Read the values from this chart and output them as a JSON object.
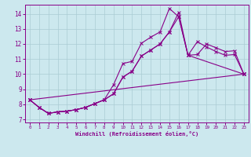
{
  "xlabel": "Windchill (Refroidissement éolien,°C)",
  "bg_color": "#cce8ee",
  "grid_color": "#aaccd4",
  "line_color": "#880088",
  "xlim": [
    -0.5,
    23.5
  ],
  "ylim": [
    6.8,
    14.6
  ],
  "xticks": [
    0,
    1,
    2,
    3,
    4,
    5,
    6,
    7,
    8,
    9,
    10,
    11,
    12,
    13,
    14,
    15,
    16,
    17,
    18,
    19,
    20,
    21,
    22,
    23
  ],
  "yticks": [
    7,
    8,
    9,
    10,
    11,
    12,
    13,
    14
  ],
  "curve1_x": [
    0,
    1,
    2,
    3,
    4,
    5,
    6,
    7,
    8,
    9,
    10,
    11,
    12,
    13,
    14,
    15,
    16,
    17,
    18,
    19,
    20,
    21,
    22,
    23
  ],
  "curve1_y": [
    8.3,
    7.8,
    7.4,
    7.5,
    7.55,
    7.65,
    7.8,
    8.05,
    8.3,
    9.3,
    10.7,
    10.85,
    12.05,
    12.45,
    12.8,
    14.35,
    13.8,
    11.25,
    12.15,
    11.8,
    11.5,
    11.25,
    11.3,
    10.0
  ],
  "curve2_x": [
    0,
    1,
    2,
    3,
    4,
    5,
    6,
    7,
    8,
    9,
    10,
    11,
    12,
    13,
    14,
    15,
    16,
    17,
    18,
    19,
    20,
    21,
    22,
    23
  ],
  "curve2_y": [
    8.3,
    7.8,
    7.4,
    7.5,
    7.55,
    7.65,
    7.8,
    8.05,
    8.3,
    8.7,
    9.8,
    10.2,
    11.2,
    11.6,
    12.0,
    12.8,
    14.1,
    11.25,
    11.3,
    12.0,
    11.75,
    11.5,
    11.55,
    10.0
  ],
  "curve3_x": [
    0,
    1,
    2,
    3,
    4,
    5,
    6,
    7,
    8,
    9,
    10,
    11,
    12,
    13,
    14,
    15,
    16,
    17,
    23
  ],
  "curve3_y": [
    8.3,
    7.8,
    7.4,
    7.5,
    7.55,
    7.65,
    7.8,
    8.05,
    8.3,
    8.7,
    9.8,
    10.2,
    11.2,
    11.6,
    12.0,
    12.8,
    13.8,
    11.25,
    10.0
  ],
  "curve4_x": [
    0,
    23
  ],
  "curve4_y": [
    8.3,
    10.0
  ]
}
